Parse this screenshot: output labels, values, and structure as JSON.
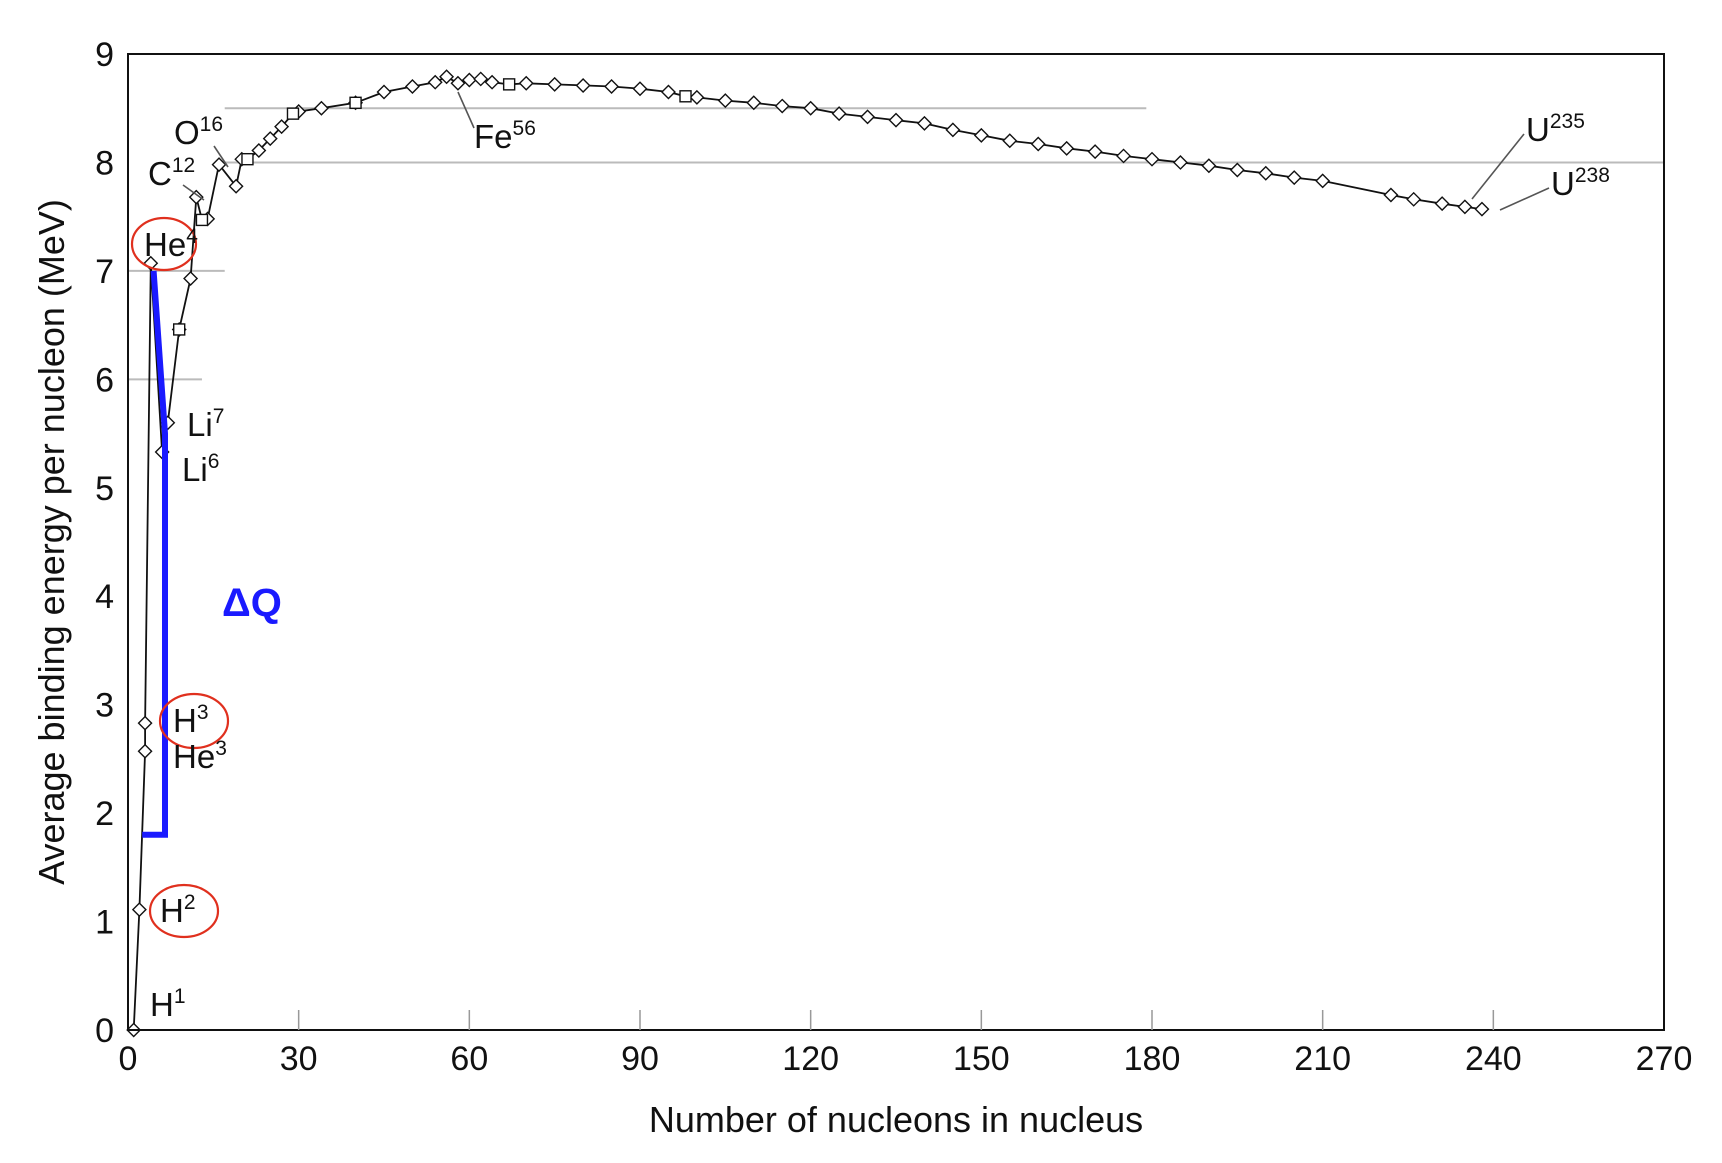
{
  "chart_data": {
    "type": "scatter",
    "xlabel": "Number of nucleons in nucleus",
    "ylabel": "Average binding energy per nucleon (MeV)",
    "xlim": [
      0,
      270
    ],
    "ylim": [
      0,
      9
    ],
    "xticks": [
      "0",
      "30",
      "60",
      "90",
      "120",
      "150",
      "180",
      "210",
      "240",
      "270"
    ],
    "yticks": [
      "0",
      "1",
      "2",
      "3",
      "4",
      "5",
      "6",
      "7",
      "8",
      "9"
    ],
    "reference_lines": [
      {
        "y": 7,
        "x_from": 0,
        "x_to": 17
      },
      {
        "y": 6,
        "x_from": 0,
        "x_to": 13
      },
      {
        "y": 8.5,
        "x_from": 17,
        "x_to": 179
      },
      {
        "y": 8,
        "x_from": 17,
        "x_to": 270
      }
    ],
    "series": [
      {
        "marker": "diamond",
        "x": [
          1,
          2,
          3,
          3,
          4,
          6,
          7,
          9,
          11,
          12,
          14,
          16,
          19,
          20,
          23,
          25,
          27,
          30,
          34,
          40,
          45,
          50,
          54,
          56,
          58,
          60,
          62,
          64,
          70,
          75,
          80,
          85,
          90,
          95,
          100,
          105,
          110,
          115,
          120,
          125,
          130,
          135,
          140,
          145,
          150,
          155,
          160,
          165,
          170,
          175,
          180,
          185,
          190,
          195,
          200,
          205,
          210,
          222,
          226,
          231,
          235,
          238
        ],
        "y": [
          0,
          1.11,
          2.57,
          2.83,
          7.07,
          5.33,
          5.6,
          6.46,
          6.93,
          7.68,
          7.48,
          7.98,
          7.78,
          8.03,
          8.11,
          8.22,
          8.33,
          8.47,
          8.5,
          8.55,
          8.65,
          8.7,
          8.74,
          8.79,
          8.73,
          8.76,
          8.77,
          8.74,
          8.73,
          8.72,
          8.71,
          8.7,
          8.68,
          8.65,
          8.6,
          8.57,
          8.55,
          8.52,
          8.5,
          8.45,
          8.42,
          8.39,
          8.36,
          8.3,
          8.25,
          8.2,
          8.17,
          8.13,
          8.1,
          8.06,
          8.03,
          8.0,
          7.97,
          7.93,
          7.9,
          7.86,
          7.83,
          7.7,
          7.66,
          7.62,
          7.59,
          7.57
        ]
      },
      {
        "marker": "square",
        "x": [
          9,
          13,
          21,
          29,
          40,
          67,
          98
        ],
        "y": [
          6.46,
          7.47,
          8.03,
          8.45,
          8.55,
          8.72,
          8.61
        ]
      }
    ],
    "annotations": [
      {
        "base": "H",
        "sup": "1",
        "x": 1,
        "y": 0,
        "circled": false
      },
      {
        "base": "H",
        "sup": "2",
        "x": 2,
        "y": 1.11,
        "circled": true
      },
      {
        "base": "H",
        "sup": "3",
        "x": 3,
        "y": 2.83,
        "circled": true
      },
      {
        "base": "He",
        "sup": "3",
        "x": 3,
        "y": 2.57,
        "circled": false
      },
      {
        "base": "He",
        "sup": "4",
        "x": 4,
        "y": 7.07,
        "circled": true
      },
      {
        "base": "Li",
        "sup": "6",
        "x": 6,
        "y": 5.33,
        "circled": false
      },
      {
        "base": "Li",
        "sup": "7",
        "x": 7,
        "y": 5.6,
        "circled": false
      },
      {
        "base": "C",
        "sup": "12",
        "x": 12,
        "y": 7.68,
        "circled": false
      },
      {
        "base": "O",
        "sup": "16",
        "x": 16,
        "y": 7.98,
        "circled": false
      },
      {
        "base": "Fe",
        "sup": "56",
        "x": 56,
        "y": 8.79,
        "circled": false
      },
      {
        "base": "U",
        "sup": "235",
        "x": 235,
        "y": 7.59,
        "circled": false
      },
      {
        "base": "U",
        "sup": "238",
        "x": 238,
        "y": 7.57,
        "circled": false
      }
    ],
    "delta_q": {
      "label": "ΔQ",
      "color": "#1a1aff",
      "path_x": [
        2.5,
        6.5,
        6.5,
        4.5
      ],
      "path_y": [
        1.8,
        1.8,
        5.5,
        7.0
      ]
    },
    "colors": {
      "circle": "#e0301e",
      "reference_line": "#bbbbbb"
    }
  }
}
